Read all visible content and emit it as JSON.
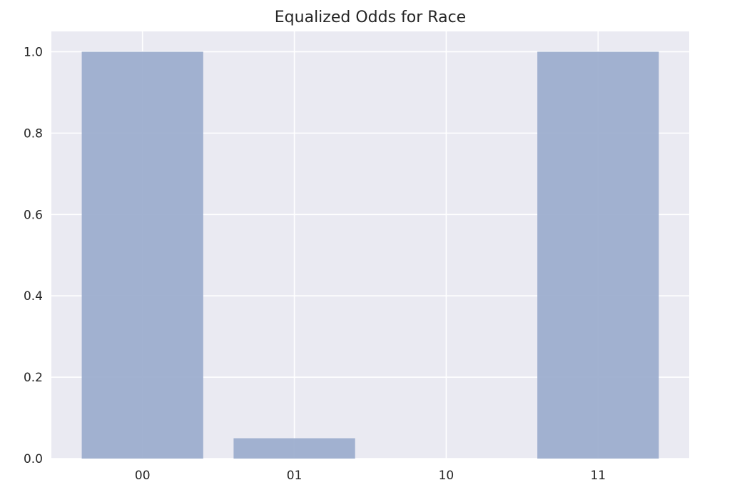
{
  "chart_data": {
    "type": "bar",
    "title": "Equalized Odds for Race",
    "xlabel": "",
    "ylabel": "",
    "categories": [
      "00",
      "01",
      "10",
      "11"
    ],
    "values": [
      1.0,
      0.05,
      0.0,
      1.0
    ],
    "ylim": [
      0,
      1.05
    ],
    "yticks": [
      "0.0",
      "0.2",
      "0.4",
      "0.6",
      "0.8",
      "1.0"
    ],
    "grid": true,
    "colors": {
      "bar": "#9aabcd",
      "plot_background": "#eaeaf2",
      "grid": "#ffffff"
    }
  }
}
